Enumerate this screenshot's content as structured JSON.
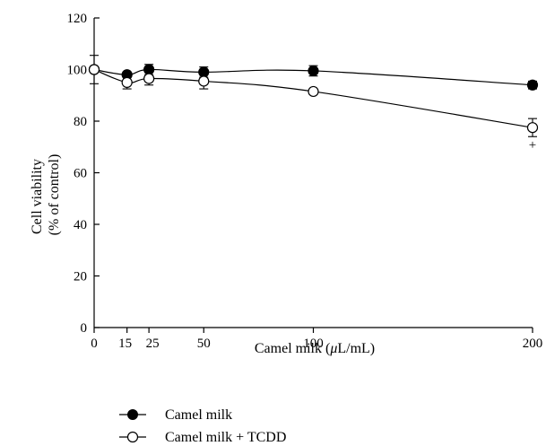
{
  "chart_data": {
    "type": "line",
    "xlabel_prefix": "Camel milk (",
    "xlabel_mu": "μ",
    "xlabel_suffix": "L/mL)",
    "ylabel_line1": "Cell viability",
    "ylabel_line2": "(% of control)",
    "x_ticks": [
      0,
      15,
      25,
      50,
      100,
      200
    ],
    "y_ticks": [
      0,
      20,
      40,
      60,
      80,
      100,
      120
    ],
    "xlim": [
      0,
      200
    ],
    "ylim": [
      0,
      120
    ],
    "grid": false,
    "legend_position": "bottom-left",
    "series": [
      {
        "name": "Camel milk",
        "marker": "filled-circle",
        "color": "#000000",
        "x": [
          0,
          15,
          25,
          50,
          100,
          200
        ],
        "y": [
          100,
          98,
          100,
          99,
          99.5,
          94
        ],
        "err": [
          1,
          1,
          2,
          2,
          2,
          1.5
        ]
      },
      {
        "name": "Camel milk + TCDD",
        "marker": "open-circle",
        "color": "#000000",
        "x": [
          0,
          15,
          25,
          50,
          100,
          200
        ],
        "y": [
          100,
          95,
          96.5,
          95.5,
          91.5,
          77.5
        ],
        "err": [
          5.5,
          2.5,
          2.5,
          3,
          1,
          3.5
        ]
      }
    ],
    "annotations": [
      {
        "text": "+",
        "x": 200,
        "y": 71
      }
    ]
  }
}
